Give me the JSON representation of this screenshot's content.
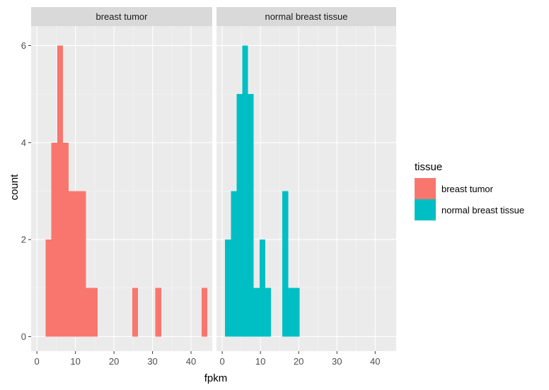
{
  "chart_data": {
    "type": "bar",
    "subtype": "faceted-histogram",
    "title": "",
    "xlabel": "fpkm",
    "ylabel": "count",
    "xlim": [
      -1.5,
      45.5
    ],
    "ylim": [
      -0.3,
      6.4
    ],
    "bin_width": 1.5,
    "x_ticks": [
      0,
      10,
      20,
      30,
      40
    ],
    "y_ticks": [
      0,
      2,
      4,
      6
    ],
    "grid": true,
    "legend": {
      "title": "tissue",
      "position": "right",
      "entries": [
        {
          "label": "breast tumor",
          "color": "#F8766D"
        },
        {
          "label": "normal breast tissue",
          "color": "#00BFC4"
        }
      ]
    },
    "facets": [
      {
        "label": "breast tumor",
        "color": "#F8766D",
        "bins": [
          {
            "x0": 2.25,
            "x1": 3.75,
            "count": 2
          },
          {
            "x0": 3.75,
            "x1": 5.25,
            "count": 4
          },
          {
            "x0": 5.25,
            "x1": 6.75,
            "count": 6
          },
          {
            "x0": 6.75,
            "x1": 8.25,
            "count": 4
          },
          {
            "x0": 8.25,
            "x1": 9.75,
            "count": 3
          },
          {
            "x0": 9.75,
            "x1": 11.25,
            "count": 3
          },
          {
            "x0": 11.25,
            "x1": 12.75,
            "count": 3
          },
          {
            "x0": 12.75,
            "x1": 14.25,
            "count": 1
          },
          {
            "x0": 14.25,
            "x1": 15.75,
            "count": 1
          },
          {
            "x0": 24.75,
            "x1": 26.25,
            "count": 1
          },
          {
            "x0": 30.75,
            "x1": 32.25,
            "count": 1
          },
          {
            "x0": 42.75,
            "x1": 44.25,
            "count": 1
          }
        ]
      },
      {
        "label": "normal breast tissue",
        "color": "#00BFC4",
        "bins": [
          {
            "x0": 0.75,
            "x1": 2.25,
            "count": 2
          },
          {
            "x0": 2.25,
            "x1": 3.75,
            "count": 3
          },
          {
            "x0": 3.75,
            "x1": 5.25,
            "count": 5
          },
          {
            "x0": 5.25,
            "x1": 6.75,
            "count": 6
          },
          {
            "x0": 6.75,
            "x1": 8.25,
            "count": 5
          },
          {
            "x0": 8.25,
            "x1": 9.75,
            "count": 1
          },
          {
            "x0": 9.75,
            "x1": 11.25,
            "count": 2
          },
          {
            "x0": 11.25,
            "x1": 12.75,
            "count": 1
          },
          {
            "x0": 15.75,
            "x1": 17.25,
            "count": 3
          },
          {
            "x0": 17.25,
            "x1": 18.75,
            "count": 1
          },
          {
            "x0": 18.75,
            "x1": 20.25,
            "count": 1
          }
        ]
      }
    ]
  }
}
